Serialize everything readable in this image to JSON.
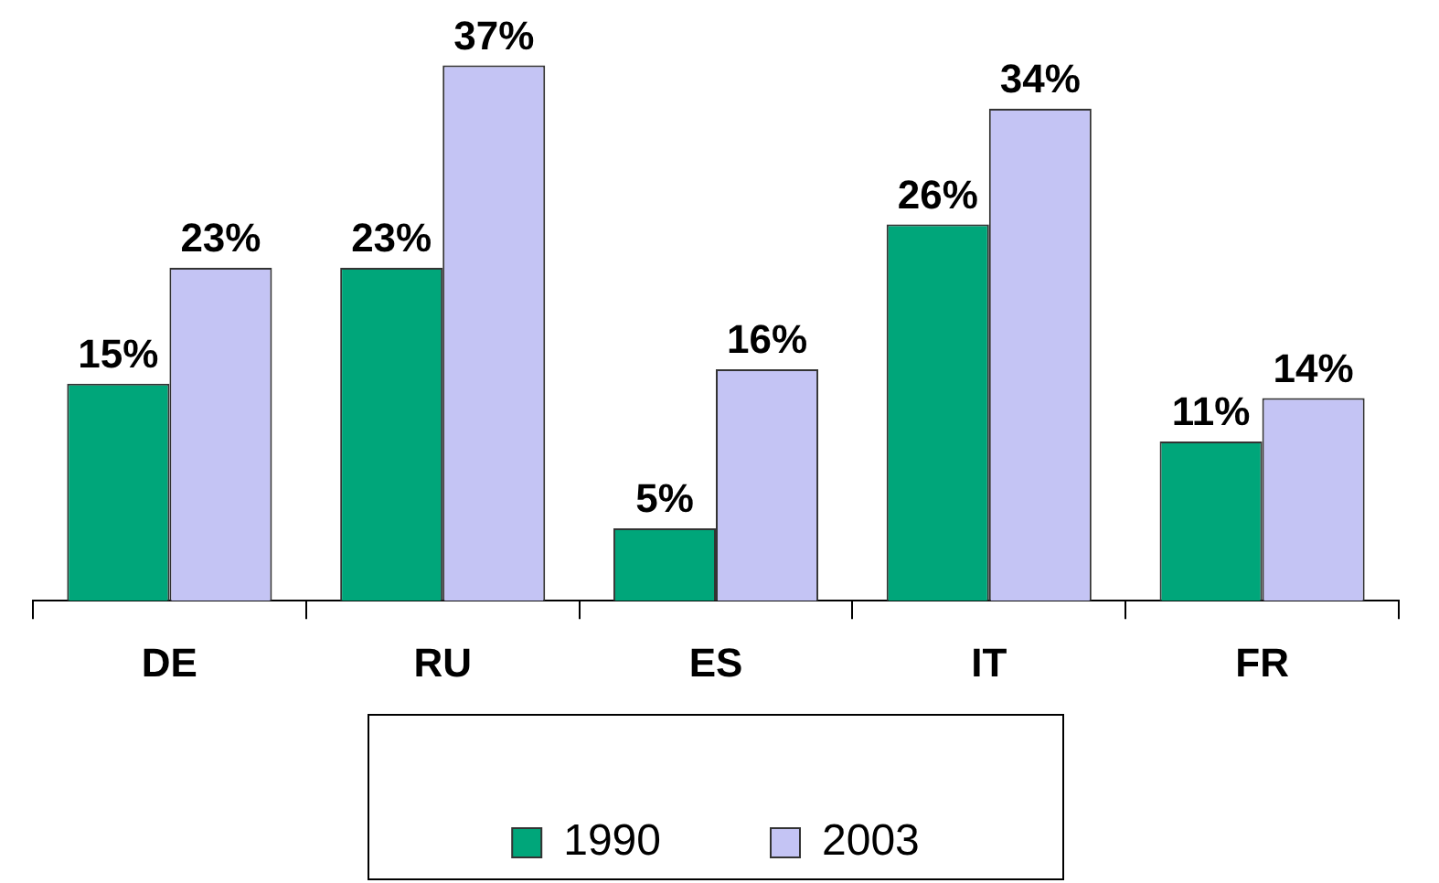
{
  "chart_data": {
    "type": "bar",
    "categories": [
      "DE",
      "RU",
      "ES",
      "IT",
      "FR"
    ],
    "series": [
      {
        "name": "1990",
        "color": "#00a67a",
        "values": [
          15,
          23,
          5,
          26,
          11
        ],
        "value_labels": [
          "15%",
          "23%",
          "5%",
          "26%",
          "11%"
        ]
      },
      {
        "name": "2003",
        "color": "#c4c4f4",
        "values": [
          23,
          37,
          16,
          34,
          14
        ],
        "value_labels": [
          "23%",
          "37%",
          "16%",
          "34%",
          "14%"
        ]
      }
    ],
    "legend": "bottom",
    "tick_labels": "x",
    "grid": false
  }
}
